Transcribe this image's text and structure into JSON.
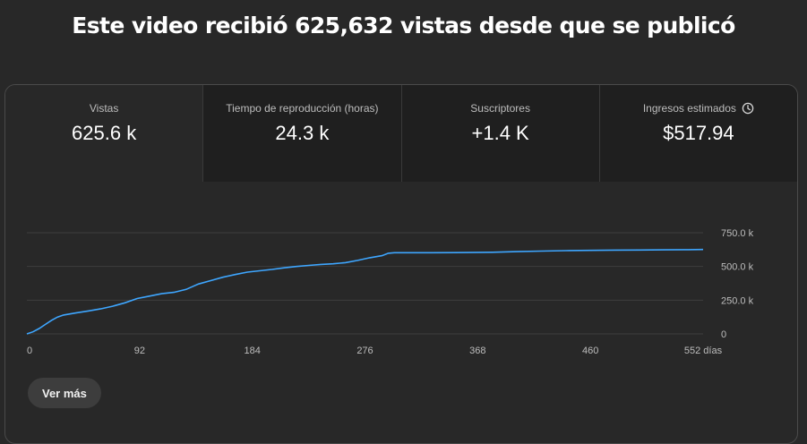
{
  "headline": "Este video recibió 625,632 vistas desde que se publicó",
  "metrics": [
    {
      "label": "Vistas",
      "value": "625.6 k"
    },
    {
      "label": "Tiempo de reproducción (horas)",
      "value": "24.3 k"
    },
    {
      "label": "Suscriptores",
      "value": "+1.4 K"
    },
    {
      "label": "Ingresos estimados",
      "value": "$517.94",
      "icon": "clock-icon"
    }
  ],
  "more_button": "Ver más",
  "colors": {
    "series": "#3ea6ff",
    "background": "#282828",
    "tab_inactive": "#1f1f1f"
  },
  "chart_data": {
    "type": "line",
    "x_unit": "días",
    "x_ticks": [
      "0",
      "92",
      "184",
      "276",
      "368",
      "460",
      "552 días"
    ],
    "x_tick_values": [
      0,
      92,
      184,
      276,
      368,
      460,
      552
    ],
    "y_ticks": [
      "0",
      "250.0 k",
      "500.0 k",
      "750.0 k"
    ],
    "y_tick_values": [
      0,
      250000,
      500000,
      750000
    ],
    "xlim": [
      0,
      552
    ],
    "ylim": [
      0,
      750000
    ],
    "grid": true,
    "series": [
      {
        "x": [
          0,
          5,
          10,
          15,
          20,
          25,
          30,
          40,
          50,
          60,
          70,
          80,
          90,
          100,
          110,
          120,
          130,
          140,
          150,
          160,
          170,
          180,
          190,
          200,
          210,
          220,
          230,
          240,
          250,
          260,
          270,
          280,
          290,
          295,
          300,
          310,
          330,
          360,
          380,
          400,
          420,
          440,
          460,
          480,
          500,
          520,
          540,
          552
        ],
        "y": [
          0,
          15000,
          40000,
          70000,
          100000,
          125000,
          140000,
          155000,
          170000,
          185000,
          205000,
          230000,
          262000,
          280000,
          298000,
          308000,
          330000,
          370000,
          395000,
          420000,
          440000,
          458000,
          468000,
          478000,
          490000,
          500000,
          508000,
          515000,
          520000,
          528000,
          545000,
          565000,
          580000,
          598000,
          602000,
          602000,
          602000,
          603000,
          605000,
          610000,
          614000,
          617000,
          619000,
          621000,
          622000,
          623000,
          624500,
          625632
        ]
      }
    ]
  }
}
